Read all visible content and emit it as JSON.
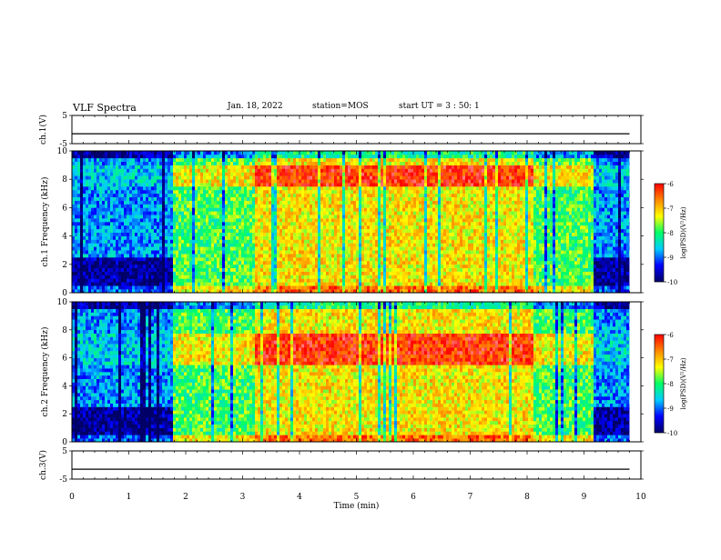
{
  "header": {
    "title": "VLF Spectra",
    "date": "Jan. 18, 2022",
    "station": "station=MOS",
    "start_ut": "start UT =  3 : 50: 1"
  },
  "chart_data": {
    "type": "heatmap",
    "title": "VLF Spectra",
    "xlabel": "Time  (min)",
    "x_ticks": [
      "0",
      "1",
      "2",
      "3",
      "4",
      "5",
      "6",
      "7",
      "8",
      "9",
      "10"
    ],
    "xlim": [
      0,
      10
    ],
    "grid": false,
    "panels": [
      {
        "id": "ch1-voltage",
        "type": "line",
        "ylabel": "ch.1(V)",
        "ylim": [
          -5,
          5
        ],
        "y_ticks": [
          "5",
          "-5"
        ],
        "trace_level": -1.5,
        "trace_end_min": 9.8
      },
      {
        "id": "ch1-spectrogram",
        "type": "heatmap",
        "ylabel": "ch.1  Frequency (kHz)",
        "ylim": [
          0,
          10
        ],
        "y_ticks": [
          "0",
          "2",
          "4",
          "6",
          "8",
          "10"
        ],
        "data_end_min": 9.8,
        "hot_band_khz": [
          7.5,
          9.0
        ],
        "colorbar": {
          "label": "log(PSD)(V²/Hz)",
          "range": [
            -10,
            -6
          ],
          "ticks": [
            "-6",
            "-7",
            "-8",
            "-9",
            "-10"
          ]
        }
      },
      {
        "id": "ch2-spectrogram",
        "type": "heatmap",
        "ylabel": "ch.2  Frequency (kHz)",
        "ylim": [
          0,
          10
        ],
        "y_ticks": [
          "0",
          "2",
          "4",
          "6",
          "8",
          "10"
        ],
        "data_end_min": 9.8,
        "hot_band_khz": [
          5.5,
          7.8
        ],
        "colorbar": {
          "label": "log(PSD)(V²/Hz)",
          "range": [
            -10,
            -6
          ],
          "ticks": [
            "-6",
            "-7",
            "-8",
            "-9",
            "-10"
          ]
        }
      },
      {
        "id": "ch3-voltage",
        "type": "line",
        "ylabel": "ch.3(V)",
        "ylim": [
          -5,
          5
        ],
        "y_ticks": [
          "5",
          "-5"
        ],
        "trace_level": -1.5,
        "trace_end_min": 9.8
      }
    ],
    "activity_segments_min": [
      {
        "from": 0.0,
        "to": 1.75,
        "level": "low"
      },
      {
        "from": 1.75,
        "to": 3.2,
        "level": "medium"
      },
      {
        "from": 3.2,
        "to": 8.1,
        "level": "high"
      },
      {
        "from": 8.1,
        "to": 9.15,
        "level": "medium"
      },
      {
        "from": 9.15,
        "to": 9.8,
        "level": "low"
      }
    ],
    "colors": {
      "colormap": [
        "#000066",
        "#0000ff",
        "#00ccff",
        "#00ff66",
        "#ffff00",
        "#ff8800",
        "#ff0000",
        "#ffffff"
      ]
    }
  }
}
